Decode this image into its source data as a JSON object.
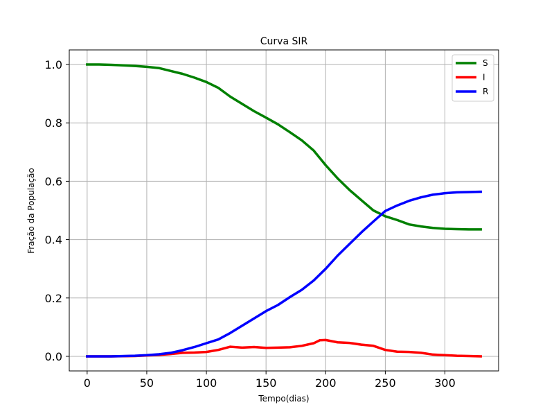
{
  "chart_data": {
    "type": "line",
    "title": "Curva SIR",
    "xlabel": "Tempo(dias)",
    "ylabel": "Fração da População",
    "xlim": [
      -15,
      345
    ],
    "ylim": [
      -0.05,
      1.05
    ],
    "xticks": [
      0,
      50,
      100,
      150,
      200,
      250,
      300
    ],
    "yticks": [
      0.0,
      0.2,
      0.4,
      0.6,
      0.8,
      1.0
    ],
    "xtick_labels": [
      "0",
      "50",
      "100",
      "150",
      "200",
      "250",
      "300"
    ],
    "ytick_labels": [
      "0.0",
      "0.2",
      "0.4",
      "0.6",
      "0.8",
      "1.0"
    ],
    "grid": true,
    "legend_position": "top-right",
    "series": [
      {
        "name": "S",
        "color": "#008000",
        "points": [
          [
            0,
            1.0
          ],
          [
            10,
            1.0
          ],
          [
            20,
            0.999
          ],
          [
            30,
            0.997
          ],
          [
            40,
            0.995
          ],
          [
            50,
            0.992
          ],
          [
            60,
            0.988
          ],
          [
            70,
            0.978
          ],
          [
            80,
            0.968
          ],
          [
            90,
            0.955
          ],
          [
            100,
            0.94
          ],
          [
            110,
            0.92
          ],
          [
            120,
            0.89
          ],
          [
            130,
            0.865
          ],
          [
            140,
            0.84
          ],
          [
            150,
            0.818
          ],
          [
            160,
            0.795
          ],
          [
            170,
            0.768
          ],
          [
            180,
            0.74
          ],
          [
            190,
            0.705
          ],
          [
            200,
            0.655
          ],
          [
            210,
            0.61
          ],
          [
            220,
            0.57
          ],
          [
            230,
            0.535
          ],
          [
            240,
            0.5
          ],
          [
            250,
            0.48
          ],
          [
            260,
            0.467
          ],
          [
            270,
            0.452
          ],
          [
            280,
            0.445
          ],
          [
            290,
            0.44
          ],
          [
            300,
            0.437
          ],
          [
            310,
            0.436
          ],
          [
            320,
            0.435
          ],
          [
            330,
            0.435
          ]
        ]
      },
      {
        "name": "I",
        "color": "#ff0000",
        "points": [
          [
            0,
            0.0
          ],
          [
            20,
            0.0
          ],
          [
            40,
            0.001
          ],
          [
            60,
            0.005
          ],
          [
            70,
            0.008
          ],
          [
            80,
            0.012
          ],
          [
            90,
            0.013
          ],
          [
            100,
            0.015
          ],
          [
            110,
            0.022
          ],
          [
            120,
            0.033
          ],
          [
            130,
            0.03
          ],
          [
            140,
            0.032
          ],
          [
            150,
            0.029
          ],
          [
            160,
            0.03
          ],
          [
            170,
            0.031
          ],
          [
            180,
            0.036
          ],
          [
            190,
            0.045
          ],
          [
            195,
            0.055
          ],
          [
            200,
            0.056
          ],
          [
            210,
            0.048
          ],
          [
            220,
            0.046
          ],
          [
            230,
            0.04
          ],
          [
            240,
            0.036
          ],
          [
            250,
            0.022
          ],
          [
            260,
            0.016
          ],
          [
            270,
            0.015
          ],
          [
            280,
            0.012
          ],
          [
            290,
            0.006
          ],
          [
            300,
            0.004
          ],
          [
            310,
            0.002
          ],
          [
            320,
            0.001
          ],
          [
            330,
            0.0
          ]
        ]
      },
      {
        "name": "R",
        "color": "#0000ff",
        "points": [
          [
            0,
            0.0
          ],
          [
            20,
            0.0
          ],
          [
            40,
            0.002
          ],
          [
            50,
            0.004
          ],
          [
            60,
            0.007
          ],
          [
            70,
            0.012
          ],
          [
            80,
            0.021
          ],
          [
            90,
            0.032
          ],
          [
            100,
            0.045
          ],
          [
            110,
            0.058
          ],
          [
            120,
            0.08
          ],
          [
            130,
            0.105
          ],
          [
            140,
            0.13
          ],
          [
            150,
            0.155
          ],
          [
            160,
            0.176
          ],
          [
            170,
            0.203
          ],
          [
            180,
            0.228
          ],
          [
            190,
            0.26
          ],
          [
            200,
            0.3
          ],
          [
            210,
            0.345
          ],
          [
            220,
            0.385
          ],
          [
            230,
            0.425
          ],
          [
            240,
            0.462
          ],
          [
            250,
            0.498
          ],
          [
            260,
            0.517
          ],
          [
            270,
            0.533
          ],
          [
            280,
            0.545
          ],
          [
            290,
            0.554
          ],
          [
            300,
            0.559
          ],
          [
            310,
            0.562
          ],
          [
            320,
            0.563
          ],
          [
            330,
            0.564
          ]
        ]
      }
    ]
  }
}
